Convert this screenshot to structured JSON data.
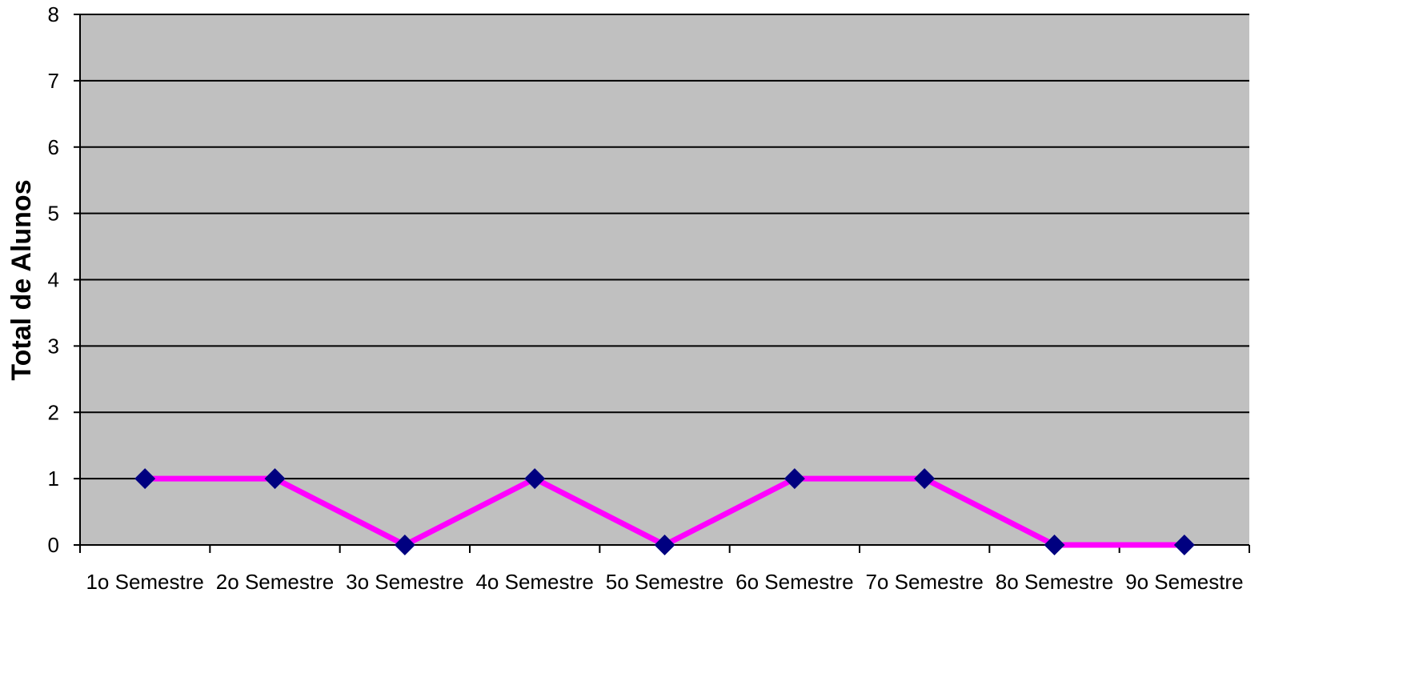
{
  "chart_data": {
    "type": "line",
    "categories": [
      "1o Semestre",
      "2o Semestre",
      "3o Semestre",
      "4o Semestre",
      "5o Semestre",
      "6o Semestre",
      "7o Semestre",
      "8o Semestre",
      "9o Semestre"
    ],
    "series": [
      {
        "values": [
          1,
          1,
          0,
          1,
          0,
          1,
          1,
          0,
          0
        ]
      }
    ],
    "title": "",
    "xlabel": "",
    "ylabel": "Total de Alunos",
    "ylim": [
      0,
      8
    ],
    "yticks": [
      "0",
      "1",
      "2",
      "3",
      "4",
      "5",
      "6",
      "7",
      "8"
    ],
    "grid": "horizontal",
    "legend": "none",
    "colors": {
      "plot_background": "#c0c0c0",
      "line": "#ff00ff",
      "marker": "#000080",
      "gridline": "#000000"
    }
  }
}
